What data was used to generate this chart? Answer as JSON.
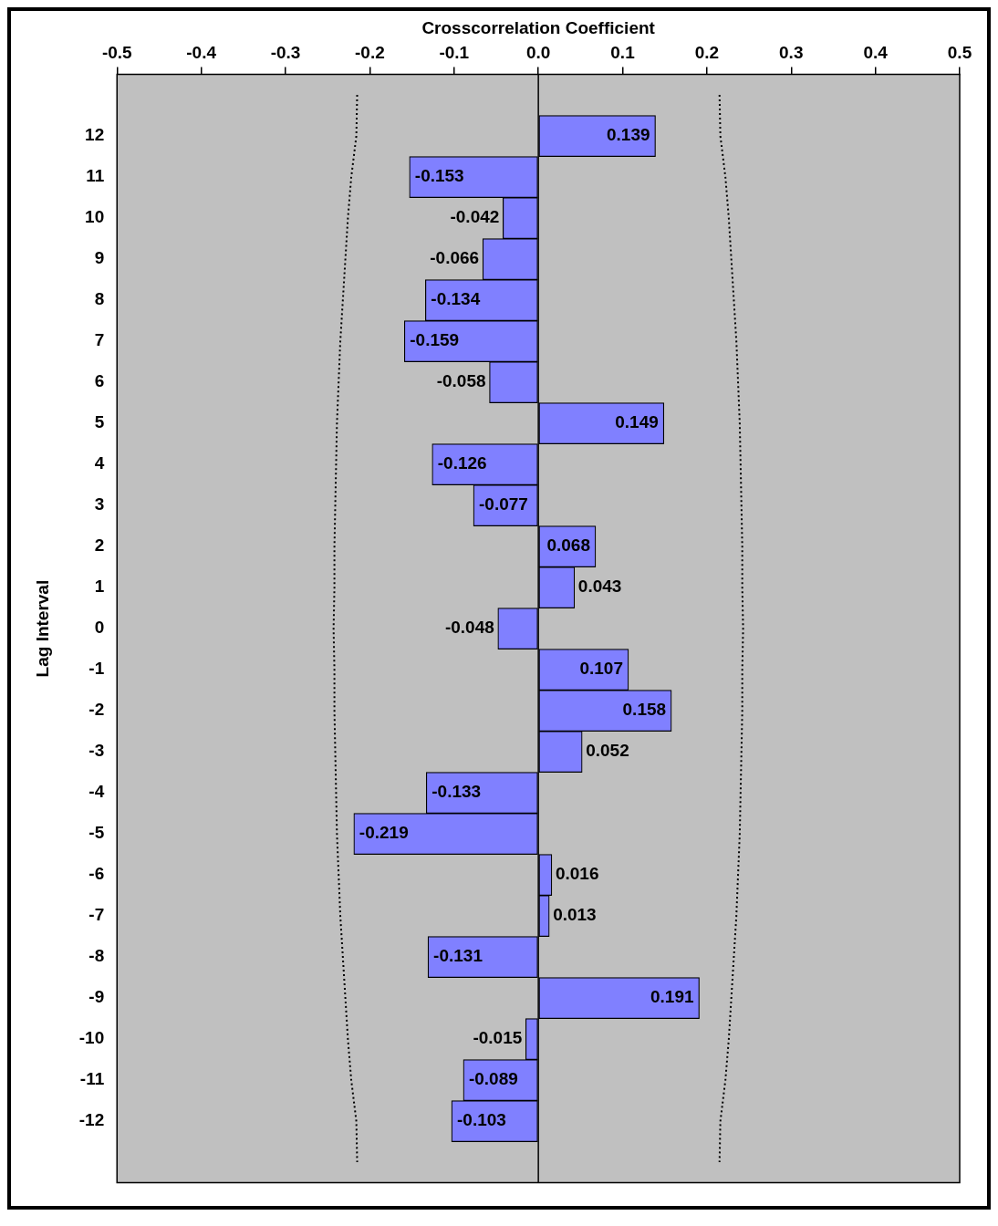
{
  "chart_data": {
    "type": "bar",
    "orientation": "horizontal",
    "xlabel": "Crosscorrelation Coefficient",
    "ylabel": "Lag Interval",
    "categories": [
      null,
      "12",
      "11",
      "10",
      "9",
      "8",
      "7",
      "6",
      "5",
      "4",
      "3",
      "2",
      "1",
      "0",
      "-1",
      "-2",
      "-3",
      "-4",
      "-5",
      "-6",
      "-7",
      "-8",
      "-9",
      "-10",
      "-11",
      "-12",
      null
    ],
    "series": [
      {
        "color": "#8080ff",
        "values": [
          null,
          0.139,
          -0.153,
          -0.042,
          -0.066,
          -0.134,
          -0.159,
          -0.058,
          0.149,
          -0.126,
          -0.077,
          0.068,
          0.043,
          -0.048,
          0.107,
          0.158,
          0.052,
          -0.133,
          -0.219,
          0.016,
          0.013,
          -0.131,
          0.191,
          -0.015,
          -0.089,
          -0.103,
          null
        ],
        "value_labels": [
          null,
          "0.139",
          "-0.153",
          "-0.042",
          "-0.066",
          "-0.134",
          "-0.159",
          "-0.058",
          "0.149",
          "-0.126",
          "-0.077",
          "0.068",
          "0.043",
          "-0.048",
          "0.107",
          "0.158",
          "0.052",
          "-0.133",
          "-0.219",
          "0.016",
          "0.013",
          "-0.131",
          "0.191",
          "-0.015",
          "-0.089",
          "-0.103",
          null
        ]
      },
      {
        "type": "line",
        "color": "#000000",
        "line_style": "dotted",
        "values": [
          0.215,
          0.216,
          0.222,
          0.226,
          0.229,
          0.232,
          0.235,
          0.237,
          0.239,
          0.24,
          0.241,
          0.242,
          0.242,
          0.243,
          0.242,
          0.242,
          0.241,
          0.24,
          0.239,
          0.237,
          0.235,
          0.232,
          0.229,
          0.226,
          0.222,
          0.216,
          0.215
        ]
      },
      {
        "type": "line",
        "color": "#000000",
        "line_style": "dotted",
        "values": [
          -0.215,
          -0.216,
          -0.222,
          -0.226,
          -0.229,
          -0.232,
          -0.235,
          -0.237,
          -0.239,
          -0.24,
          -0.241,
          -0.242,
          -0.242,
          -0.243,
          -0.242,
          -0.242,
          -0.241,
          -0.24,
          -0.239,
          -0.237,
          -0.235,
          -0.232,
          -0.229,
          -0.226,
          -0.222,
          -0.216,
          -0.215
        ]
      }
    ],
    "xlim": [
      -0.5,
      0.5
    ],
    "xticks": [
      -0.5,
      -0.4,
      -0.3,
      -0.2,
      -0.1,
      {
        "value": 0,
        "label": "0.0"
      },
      0.1,
      0.2,
      0.3,
      0.4,
      0.5
    ],
    "legend": false
  }
}
